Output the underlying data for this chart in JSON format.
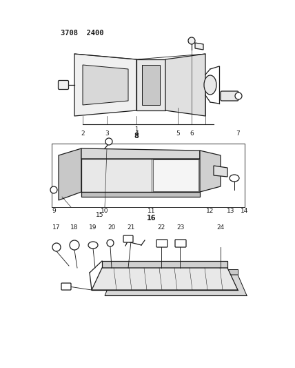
{
  "title": "3708  2400",
  "bg_color": "#ffffff",
  "line_color": "#1a1a1a",
  "fig_w": 4.28,
  "fig_h": 5.33,
  "dpi": 100
}
